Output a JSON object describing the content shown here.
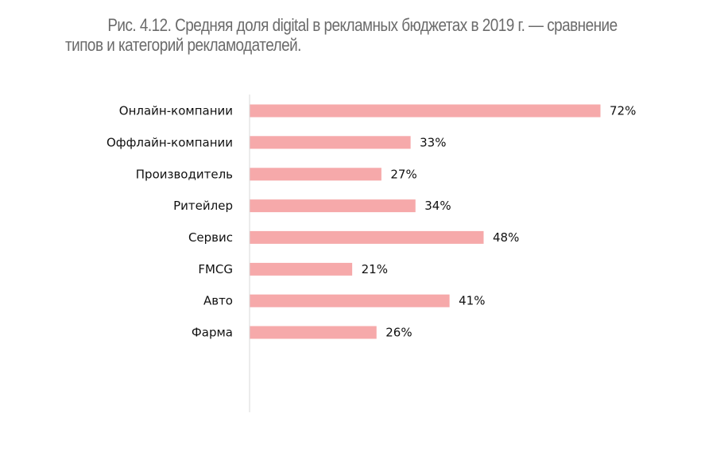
{
  "caption": {
    "line1": "Рис. 4.12. Средняя доля digital в рекламных бюджетах в 2019 г. — сравнение",
    "line2": "типов и категорий рекламодателей."
  },
  "chart_data": {
    "type": "bar",
    "orientation": "horizontal",
    "title": "Рис. 4.12. Средняя доля digital в рекламных бюджетах в 2019 г. — сравнение типов и категорий рекламодателей.",
    "xlabel": "",
    "ylabel": "",
    "unit": "%",
    "xlim": [
      0,
      72
    ],
    "grid": false,
    "legend": "none",
    "bar_color": "#f6a9aa",
    "groups": [
      {
        "categories": [
          "Онлайн-компании",
          "Оффлайн-компании"
        ],
        "values": [
          72,
          33
        ]
      },
      {
        "categories": [
          "Производитель",
          "Ритейлер",
          "Сервис"
        ],
        "values": [
          27,
          34,
          48
        ]
      },
      {
        "categories": [
          "FMCG",
          "Авто",
          "Фарма"
        ],
        "values": [
          21,
          41,
          26
        ]
      }
    ],
    "categories": [
      "Онлайн-компании",
      "Оффлайн-компании",
      "Производитель",
      "Ритейлер",
      "Сервис",
      "FMCG",
      "Авто",
      "Фарма"
    ],
    "values": [
      72,
      33,
      27,
      34,
      48,
      21,
      41,
      26
    ],
    "data_labels": [
      "72%",
      "33%",
      "27%",
      "34%",
      "48%",
      "21%",
      "41%",
      "26%"
    ]
  }
}
